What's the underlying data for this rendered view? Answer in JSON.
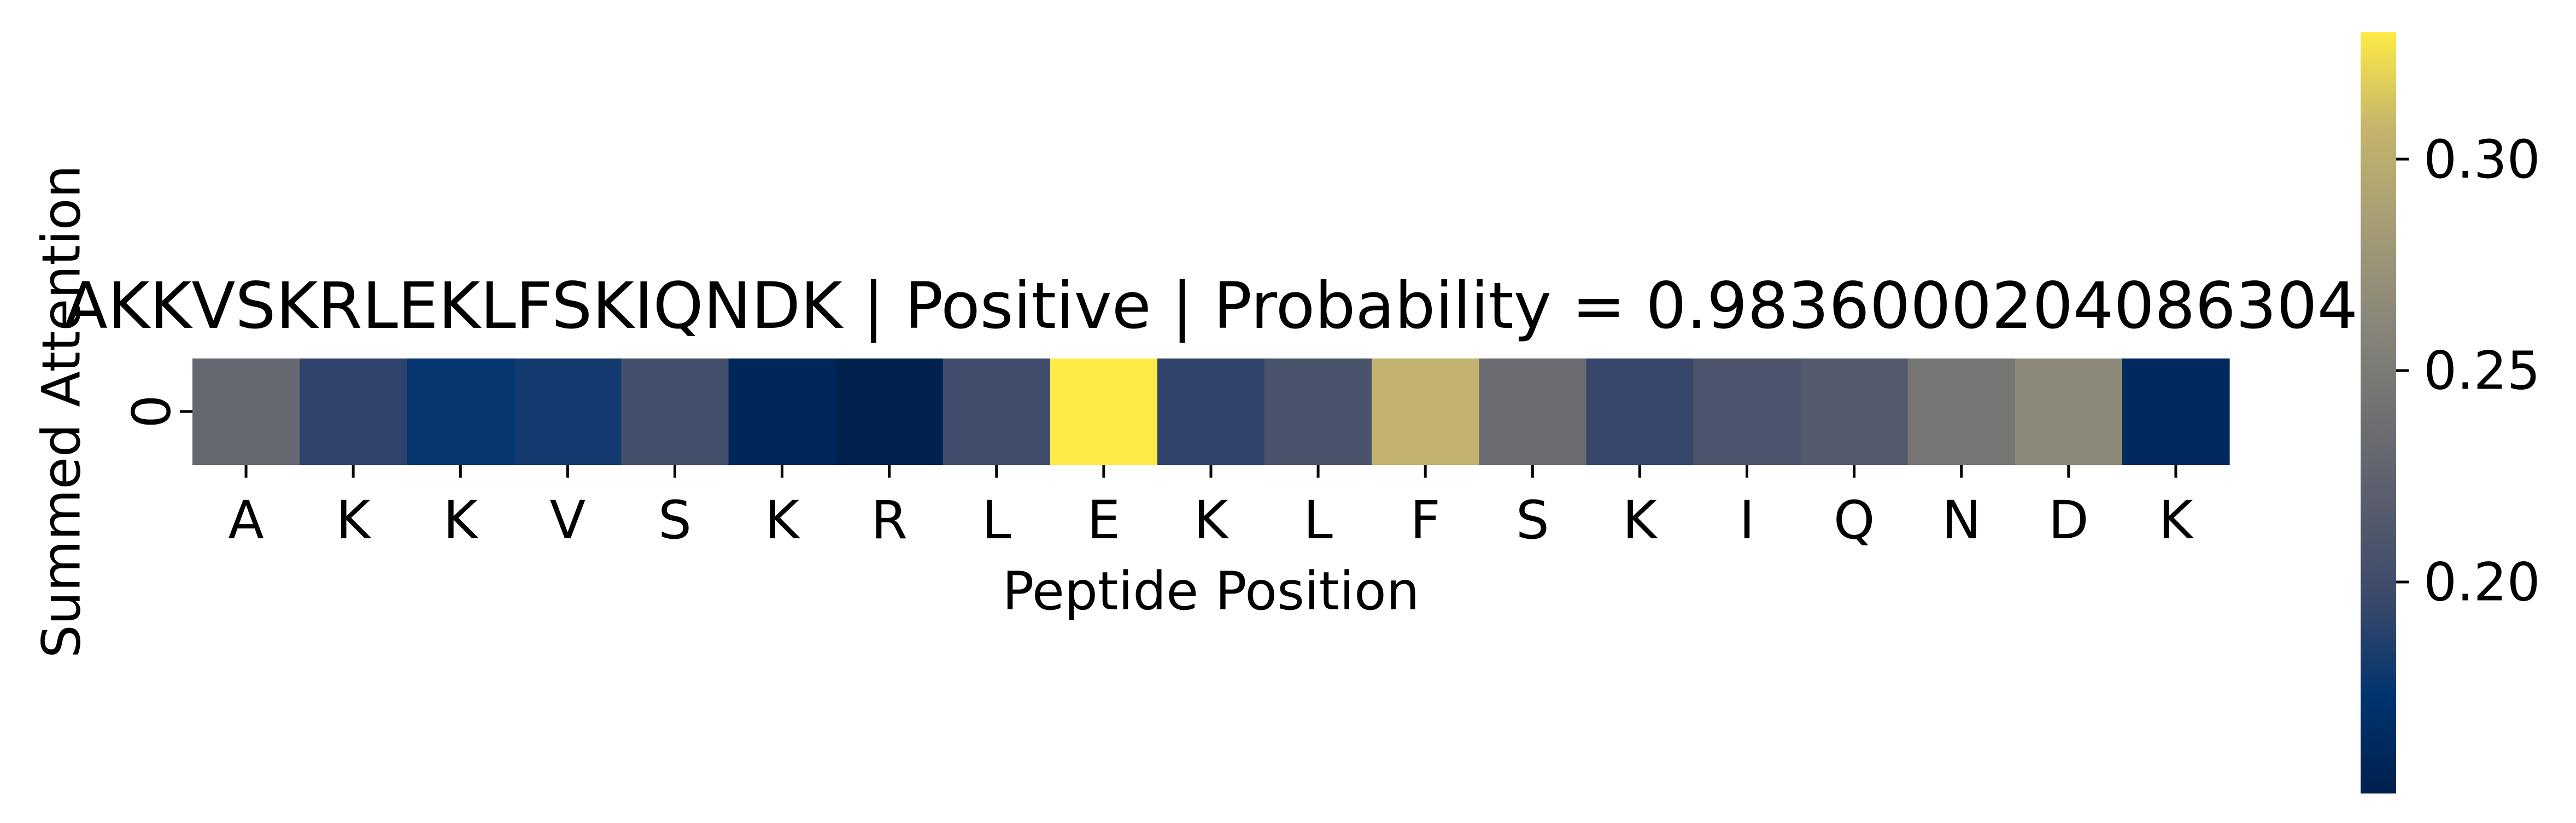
{
  "chart_data": {
    "type": "heatmap",
    "title": "AKKVSKRLEKLFSKIQNDK | Positive | Probability = 0.9836000204086304",
    "xlabel": "Peptide Position",
    "ylabel": "Summed Attention",
    "rows": [
      "0"
    ],
    "categories": [
      "A",
      "K",
      "K",
      "V",
      "S",
      "K",
      "R",
      "L",
      "E",
      "K",
      "L",
      "F",
      "S",
      "K",
      "I",
      "Q",
      "N",
      "D",
      "K"
    ],
    "values": [
      0.23,
      0.191,
      0.175,
      0.18,
      0.203,
      0.158,
      0.15,
      0.2,
      0.33,
      0.192,
      0.207,
      0.305,
      0.235,
      0.194,
      0.21,
      0.215,
      0.245,
      0.265,
      0.162
    ],
    "colormap": "cividis",
    "colorbar": {
      "vmin": 0.15,
      "vmax": 0.33,
      "ticks": [
        0.2,
        0.25,
        0.3
      ],
      "tick_labels": [
        "0.20",
        "0.25",
        "0.30"
      ]
    }
  }
}
